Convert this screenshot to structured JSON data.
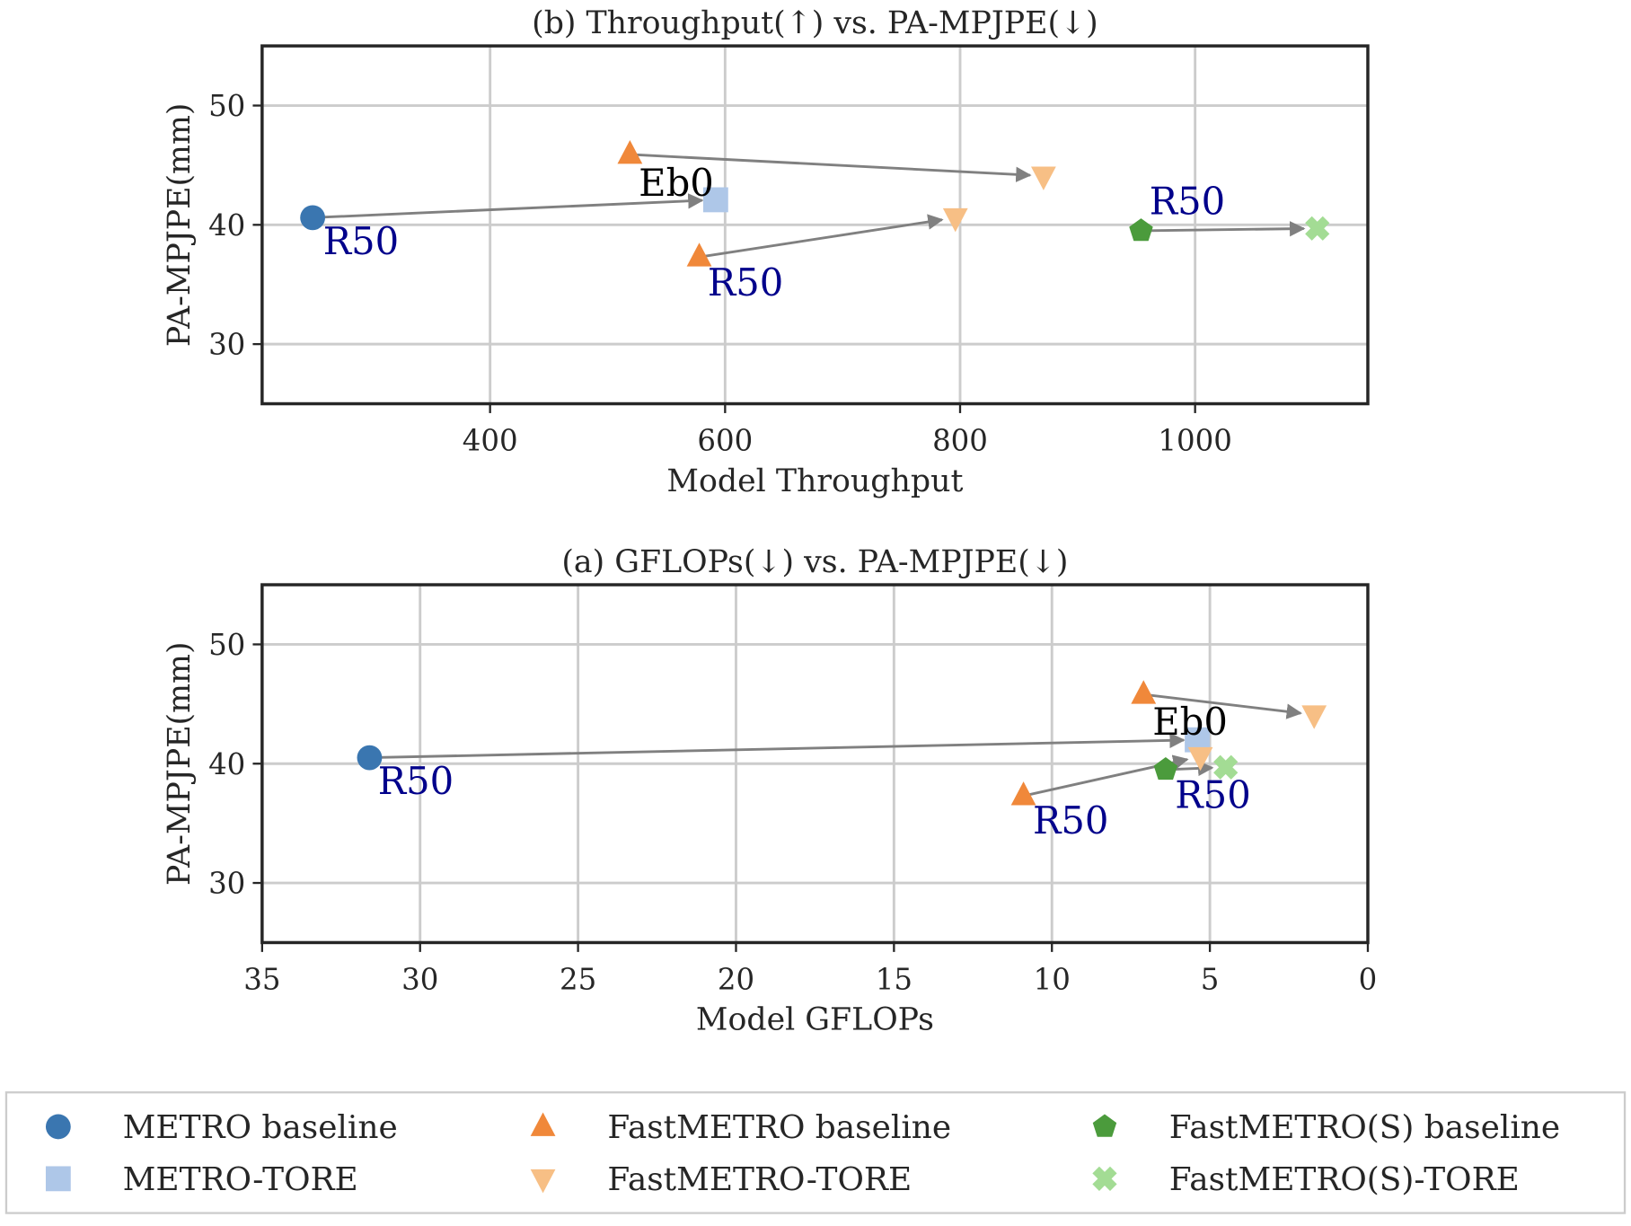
{
  "series_styles": [
    {
      "name": "METRO baseline",
      "marker": "circle",
      "color": "#3a76b0"
    },
    {
      "name": "METRO-TORE",
      "marker": "square",
      "color": "#aec7e8"
    },
    {
      "name": "FastMETRO baseline",
      "marker": "triangle-up",
      "color": "#f0883a"
    },
    {
      "name": "FastMETRO-TORE",
      "marker": "triangle-down",
      "color": "#f7bf85"
    },
    {
      "name": "FastMETRO(S) baseline",
      "marker": "pentagon",
      "color": "#4b9b3c"
    },
    {
      "name": "FastMETRO(S)-TORE",
      "marker": "x",
      "color": "#a3dc94"
    }
  ],
  "arrow_color": "#808080",
  "annotation_color": "#00008b",
  "legend": {
    "placement": "bottom",
    "columns": 3,
    "entries": [
      "METRO baseline",
      "METRO-TORE",
      "FastMETRO baseline",
      "FastMETRO-TORE",
      "FastMETRO(S) baseline",
      "FastMETRO(S)-TORE"
    ]
  },
  "chart_data": [
    {
      "type": "scatter",
      "title": "(b) Throughput(↑) vs. PA-MPJPE(↓)",
      "xlabel": "Model Throughput",
      "ylabel": "PA-MPJPE(mm)",
      "xlim": [
        206,
        1147
      ],
      "ylim": [
        25,
        55
      ],
      "xticks": [
        400,
        600,
        800,
        1000
      ],
      "yticks": [
        30,
        40,
        50
      ],
      "x_reversed": false,
      "grid": true,
      "points": [
        {
          "series": "METRO baseline",
          "x": 249,
          "y": 40.6
        },
        {
          "series": "METRO-TORE",
          "x": 592,
          "y": 42.1
        },
        {
          "series": "FastMETRO baseline",
          "x": 519,
          "y": 45.9
        },
        {
          "series": "FastMETRO-TORE",
          "x": 871,
          "y": 44.1
        },
        {
          "series": "FastMETRO baseline",
          "x": 578,
          "y": 37.3
        },
        {
          "series": "FastMETRO-TORE",
          "x": 796,
          "y": 40.6
        },
        {
          "series": "FastMETRO(S) baseline",
          "x": 954,
          "y": 39.5
        },
        {
          "series": "FastMETRO(S)-TORE",
          "x": 1104,
          "y": 39.7
        }
      ],
      "arrows": [
        [
          0,
          1
        ],
        [
          2,
          3
        ],
        [
          4,
          5
        ],
        [
          6,
          7
        ]
      ],
      "annotations": [
        {
          "text": "R50",
          "point": 0,
          "color": "navy"
        },
        {
          "text": "Eb0",
          "point": 1,
          "color": "black"
        },
        {
          "text": "R50",
          "point": 4,
          "color": "navy"
        },
        {
          "text": "R50",
          "point": 6,
          "color": "navy"
        }
      ]
    },
    {
      "type": "scatter",
      "title": "(a) GFLOPs(↓) vs. PA-MPJPE(↓)",
      "xlabel": "Model GFLOPs",
      "ylabel": "PA-MPJPE(mm)",
      "xlim": [
        35,
        0
      ],
      "ylim": [
        25,
        55
      ],
      "xticks": [
        35,
        30,
        25,
        20,
        15,
        10,
        5,
        0
      ],
      "yticks": [
        30,
        40,
        50
      ],
      "x_reversed": true,
      "grid": true,
      "points": [
        {
          "series": "METRO baseline",
          "x": 31.6,
          "y": 40.5
        },
        {
          "series": "METRO-TORE",
          "x": 5.4,
          "y": 42.0
        },
        {
          "series": "FastMETRO baseline",
          "x": 7.1,
          "y": 45.8
        },
        {
          "series": "FastMETRO-TORE",
          "x": 1.7,
          "y": 44.1
        },
        {
          "series": "FastMETRO baseline",
          "x": 10.9,
          "y": 37.3
        },
        {
          "series": "FastMETRO-TORE",
          "x": 5.3,
          "y": 40.6
        },
        {
          "series": "FastMETRO(S) baseline",
          "x": 6.4,
          "y": 39.5
        },
        {
          "series": "FastMETRO(S)-TORE",
          "x": 4.5,
          "y": 39.7
        }
      ],
      "arrows": [
        [
          0,
          1
        ],
        [
          2,
          3
        ],
        [
          4,
          5
        ],
        [
          6,
          7
        ]
      ],
      "annotations": [
        {
          "text": "R50",
          "point": 0,
          "color": "navy"
        },
        {
          "text": "Eb0",
          "point": 1,
          "color": "black"
        },
        {
          "text": "R50",
          "point": 4,
          "color": "navy"
        },
        {
          "text": "R50",
          "point": 6,
          "color": "navy"
        }
      ]
    }
  ]
}
